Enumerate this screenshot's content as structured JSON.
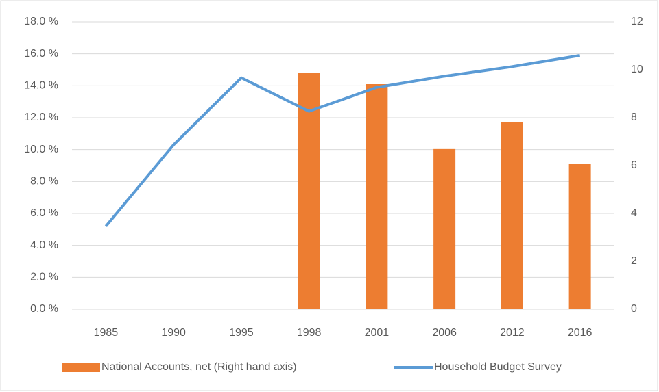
{
  "chart_data": {
    "type": "combo",
    "categories": [
      "1985",
      "1990",
      "1995",
      "1998",
      "2001",
      "2006",
      "2012",
      "2016"
    ],
    "series": [
      {
        "name": "National Accounts, net (Right hand axis)",
        "type": "bar",
        "axis": "y2",
        "color": "#ed7d31",
        "values": [
          null,
          null,
          null,
          9.86,
          9.4,
          6.69,
          7.8,
          6.06
        ]
      },
      {
        "name": "Household Budget Survey",
        "type": "line",
        "axis": "y",
        "color": "#5b9bd5",
        "values": [
          5.2,
          10.3,
          14.5,
          12.4,
          13.9,
          14.6,
          15.2,
          15.9
        ]
      }
    ],
    "ylim": [
      0,
      18
    ],
    "yticks": [
      {
        "value": 0,
        "label": "0.0 %"
      },
      {
        "value": 2,
        "label": "2.0 %"
      },
      {
        "value": 4,
        "label": "4.0 %"
      },
      {
        "value": 6,
        "label": "6.0 %"
      },
      {
        "value": 8,
        "label": "8.0 %"
      },
      {
        "value": 10,
        "label": "10.0 %"
      },
      {
        "value": 12,
        "label": "12.0 %"
      },
      {
        "value": 14,
        "label": "14.0 %"
      },
      {
        "value": 16,
        "label": "16.0 %"
      },
      {
        "value": 18,
        "label": "18.0 %"
      }
    ],
    "y2lim": [
      0,
      12
    ],
    "y2ticks": [
      0,
      2,
      4,
      6,
      8,
      10,
      12
    ],
    "grid": true,
    "legend": "bottom"
  }
}
